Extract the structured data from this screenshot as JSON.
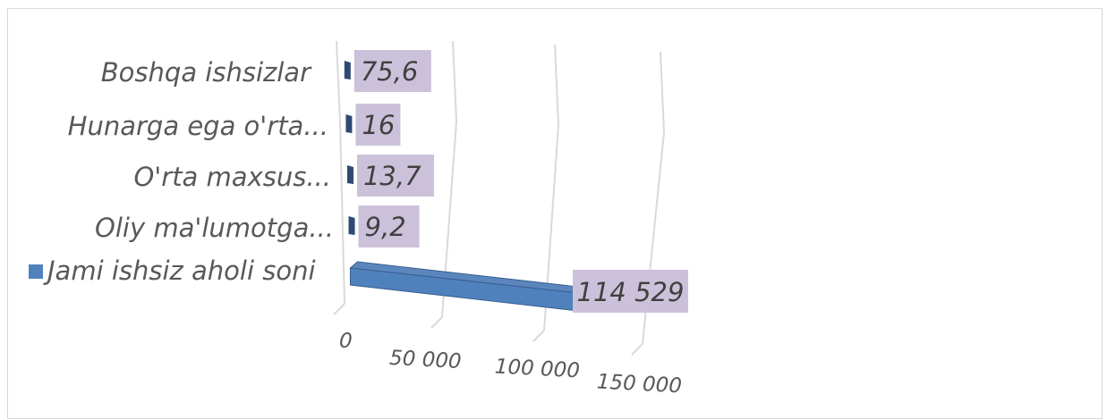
{
  "chart_data": {
    "type": "bar",
    "orientation": "horizontal",
    "style": "3d",
    "categories": [
      "Jami ishsiz aholi soni",
      "Oliy ma'lumotga...",
      "O'rta maxsus...",
      "Hunarga ega o'rta...",
      "Boshqa ishsizlar"
    ],
    "values": [
      114529,
      9.2,
      13.7,
      16,
      75.6
    ],
    "data_labels": [
      "114 529",
      "9,2",
      "13,7",
      "16",
      "75,6"
    ],
    "xticks": [
      "0",
      "50 000",
      "100 000",
      "150 000"
    ],
    "xtick_values": [
      0,
      50000,
      100000,
      150000
    ],
    "xlim": [
      0,
      150000
    ],
    "grid": true,
    "legend": {
      "position": "left",
      "entry": "Jami ishsiz aholi soni"
    },
    "colors": {
      "total_bar": "#4f81bd",
      "small_bars": "#2e4a72",
      "label_fill": "#ccc1da",
      "grid": "#d9d9d9"
    }
  }
}
